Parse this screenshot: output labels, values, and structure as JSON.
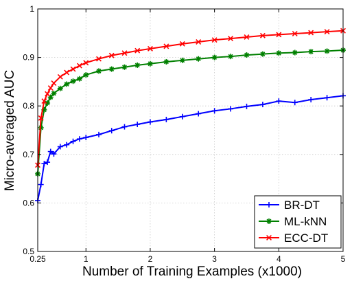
{
  "chart_data": {
    "type": "line",
    "title": "",
    "xlabel": "Number of Training Examples (x1000)",
    "ylabel": "Micro-averaged AUC",
    "xlim": [
      0.25,
      5
    ],
    "ylim": [
      0.5,
      1
    ],
    "xticks": [
      0.25,
      1,
      2,
      3,
      4,
      5
    ],
    "xtick_labels": [
      "0.25",
      "1",
      "2",
      "3",
      "4",
      "5"
    ],
    "yticks": [
      0.5,
      0.6,
      0.7,
      0.8,
      0.9,
      1
    ],
    "ytick_labels": [
      "0.5",
      "0.6",
      "0.7",
      "0.8",
      "0.9",
      "1"
    ],
    "grid": true,
    "legend_position": "bottom-right",
    "series": [
      {
        "name": "BR-DT",
        "color": "#0000ff",
        "marker": "plus",
        "x": [
          0.25,
          0.3,
          0.35,
          0.4,
          0.45,
          0.5,
          0.6,
          0.7,
          0.8,
          0.9,
          1.0,
          1.2,
          1.4,
          1.6,
          1.8,
          2.0,
          2.25,
          2.5,
          2.75,
          3.0,
          3.25,
          3.5,
          3.75,
          4.0,
          4.25,
          4.5,
          4.75,
          5.0
        ],
        "y": [
          0.605,
          0.638,
          0.681,
          0.684,
          0.706,
          0.701,
          0.716,
          0.72,
          0.727,
          0.732,
          0.735,
          0.741,
          0.749,
          0.757,
          0.762,
          0.767,
          0.772,
          0.778,
          0.784,
          0.79,
          0.794,
          0.799,
          0.803,
          0.81,
          0.807,
          0.813,
          0.817,
          0.821
        ]
      },
      {
        "name": "ML-kNN",
        "color": "#008000",
        "marker": "star",
        "x": [
          0.25,
          0.3,
          0.35,
          0.4,
          0.45,
          0.5,
          0.6,
          0.7,
          0.8,
          0.9,
          1.0,
          1.2,
          1.4,
          1.6,
          1.8,
          2.0,
          2.25,
          2.5,
          2.75,
          3.0,
          3.25,
          3.5,
          3.75,
          4.0,
          4.25,
          4.5,
          4.75,
          5.0
        ],
        "y": [
          0.66,
          0.755,
          0.792,
          0.806,
          0.818,
          0.826,
          0.836,
          0.845,
          0.851,
          0.856,
          0.864,
          0.872,
          0.876,
          0.88,
          0.884,
          0.887,
          0.891,
          0.894,
          0.897,
          0.9,
          0.902,
          0.905,
          0.907,
          0.909,
          0.91,
          0.912,
          0.913,
          0.915
        ]
      },
      {
        "name": "ECC-DT",
        "color": "#ff0000",
        "marker": "x",
        "x": [
          0.25,
          0.3,
          0.35,
          0.4,
          0.45,
          0.5,
          0.6,
          0.7,
          0.8,
          0.9,
          1.0,
          1.2,
          1.4,
          1.6,
          1.8,
          2.0,
          2.25,
          2.5,
          2.75,
          3.0,
          3.25,
          3.5,
          3.75,
          4.0,
          4.25,
          4.5,
          4.75,
          5.0
        ],
        "y": [
          0.678,
          0.775,
          0.81,
          0.825,
          0.837,
          0.847,
          0.86,
          0.869,
          0.876,
          0.883,
          0.889,
          0.897,
          0.904,
          0.909,
          0.914,
          0.918,
          0.923,
          0.928,
          0.932,
          0.936,
          0.939,
          0.942,
          0.945,
          0.947,
          0.949,
          0.951,
          0.953,
          0.955
        ]
      }
    ]
  }
}
